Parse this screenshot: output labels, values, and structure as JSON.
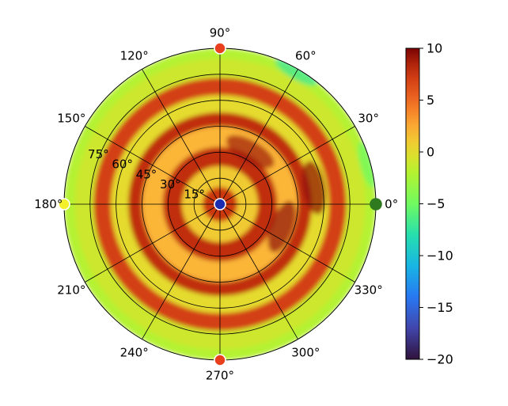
{
  "chart_data": {
    "type": "heatmap",
    "projection": "polar",
    "title": "",
    "angular_tick_labels": [
      "0°",
      "30°",
      "60°",
      "90°",
      "120°",
      "150°",
      "180°",
      "210°",
      "240°",
      "270°",
      "300°",
      "330°"
    ],
    "angular_ticks_deg": [
      0,
      30,
      60,
      90,
      120,
      150,
      180,
      210,
      240,
      270,
      300,
      330
    ],
    "radial_tick_labels": [
      "15°",
      "30°",
      "45°",
      "60°",
      "75°"
    ],
    "radial_ticks_deg": [
      15,
      30,
      45,
      60,
      75
    ],
    "r_range": [
      0,
      90
    ],
    "grid": true,
    "colormap": "turbo",
    "value_range": [
      -20,
      10
    ],
    "colorbar": {
      "position": "right",
      "tick_values": [
        10,
        5,
        0,
        -5,
        -10,
        -15,
        -20
      ],
      "tick_labels": [
        "10",
        "5",
        "0",
        "−5",
        "−10",
        "−15",
        "−20"
      ]
    },
    "field": {
      "background_value": 7,
      "radial_rings": [
        {
          "r_deg": 10,
          "value": 7.5
        },
        {
          "r_deg": 22,
          "value": 1
        },
        {
          "r_deg": 33,
          "value": 8
        },
        {
          "r_deg": 45,
          "value": 2
        },
        {
          "r_deg": 53,
          "value": 8
        },
        {
          "r_deg": 63,
          "value": 0
        },
        {
          "r_deg": 73,
          "value": 7
        },
        {
          "r_deg": 84,
          "value": -1
        },
        {
          "r_deg": 90,
          "value": -2
        }
      ],
      "dark_lobes": [
        {
          "angle_deg": 10,
          "r_deg": 55,
          "value": 9.5
        },
        {
          "angle_deg": -20,
          "r_deg": 38,
          "value": 9.5
        },
        {
          "angle_deg": 60,
          "r_deg": 35,
          "value": 9
        }
      ],
      "outer_edge_color_shift": [
        {
          "angle_deg": 60,
          "value": -7
        },
        {
          "angle_deg": 15,
          "value": -5
        }
      ]
    },
    "markers": [
      {
        "label": "0°",
        "angle_deg": 0,
        "r_deg": 90,
        "color": "#2f7a1f",
        "edge": "#2f7a1f"
      },
      {
        "label": "90°",
        "angle_deg": 90,
        "r_deg": 90,
        "color": "#e8401c",
        "edge": "#ffffff"
      },
      {
        "label": "180°",
        "angle_deg": 180,
        "r_deg": 90,
        "color": "#f4f02a",
        "edge": "#ffffff"
      },
      {
        "label": "270°",
        "angle_deg": 270,
        "r_deg": 90,
        "color": "#e8401c",
        "edge": "#ffffff"
      },
      {
        "label": "center",
        "angle_deg": 0,
        "r_deg": 0,
        "color": "#1a2db0",
        "edge": "#ffffff"
      }
    ]
  }
}
